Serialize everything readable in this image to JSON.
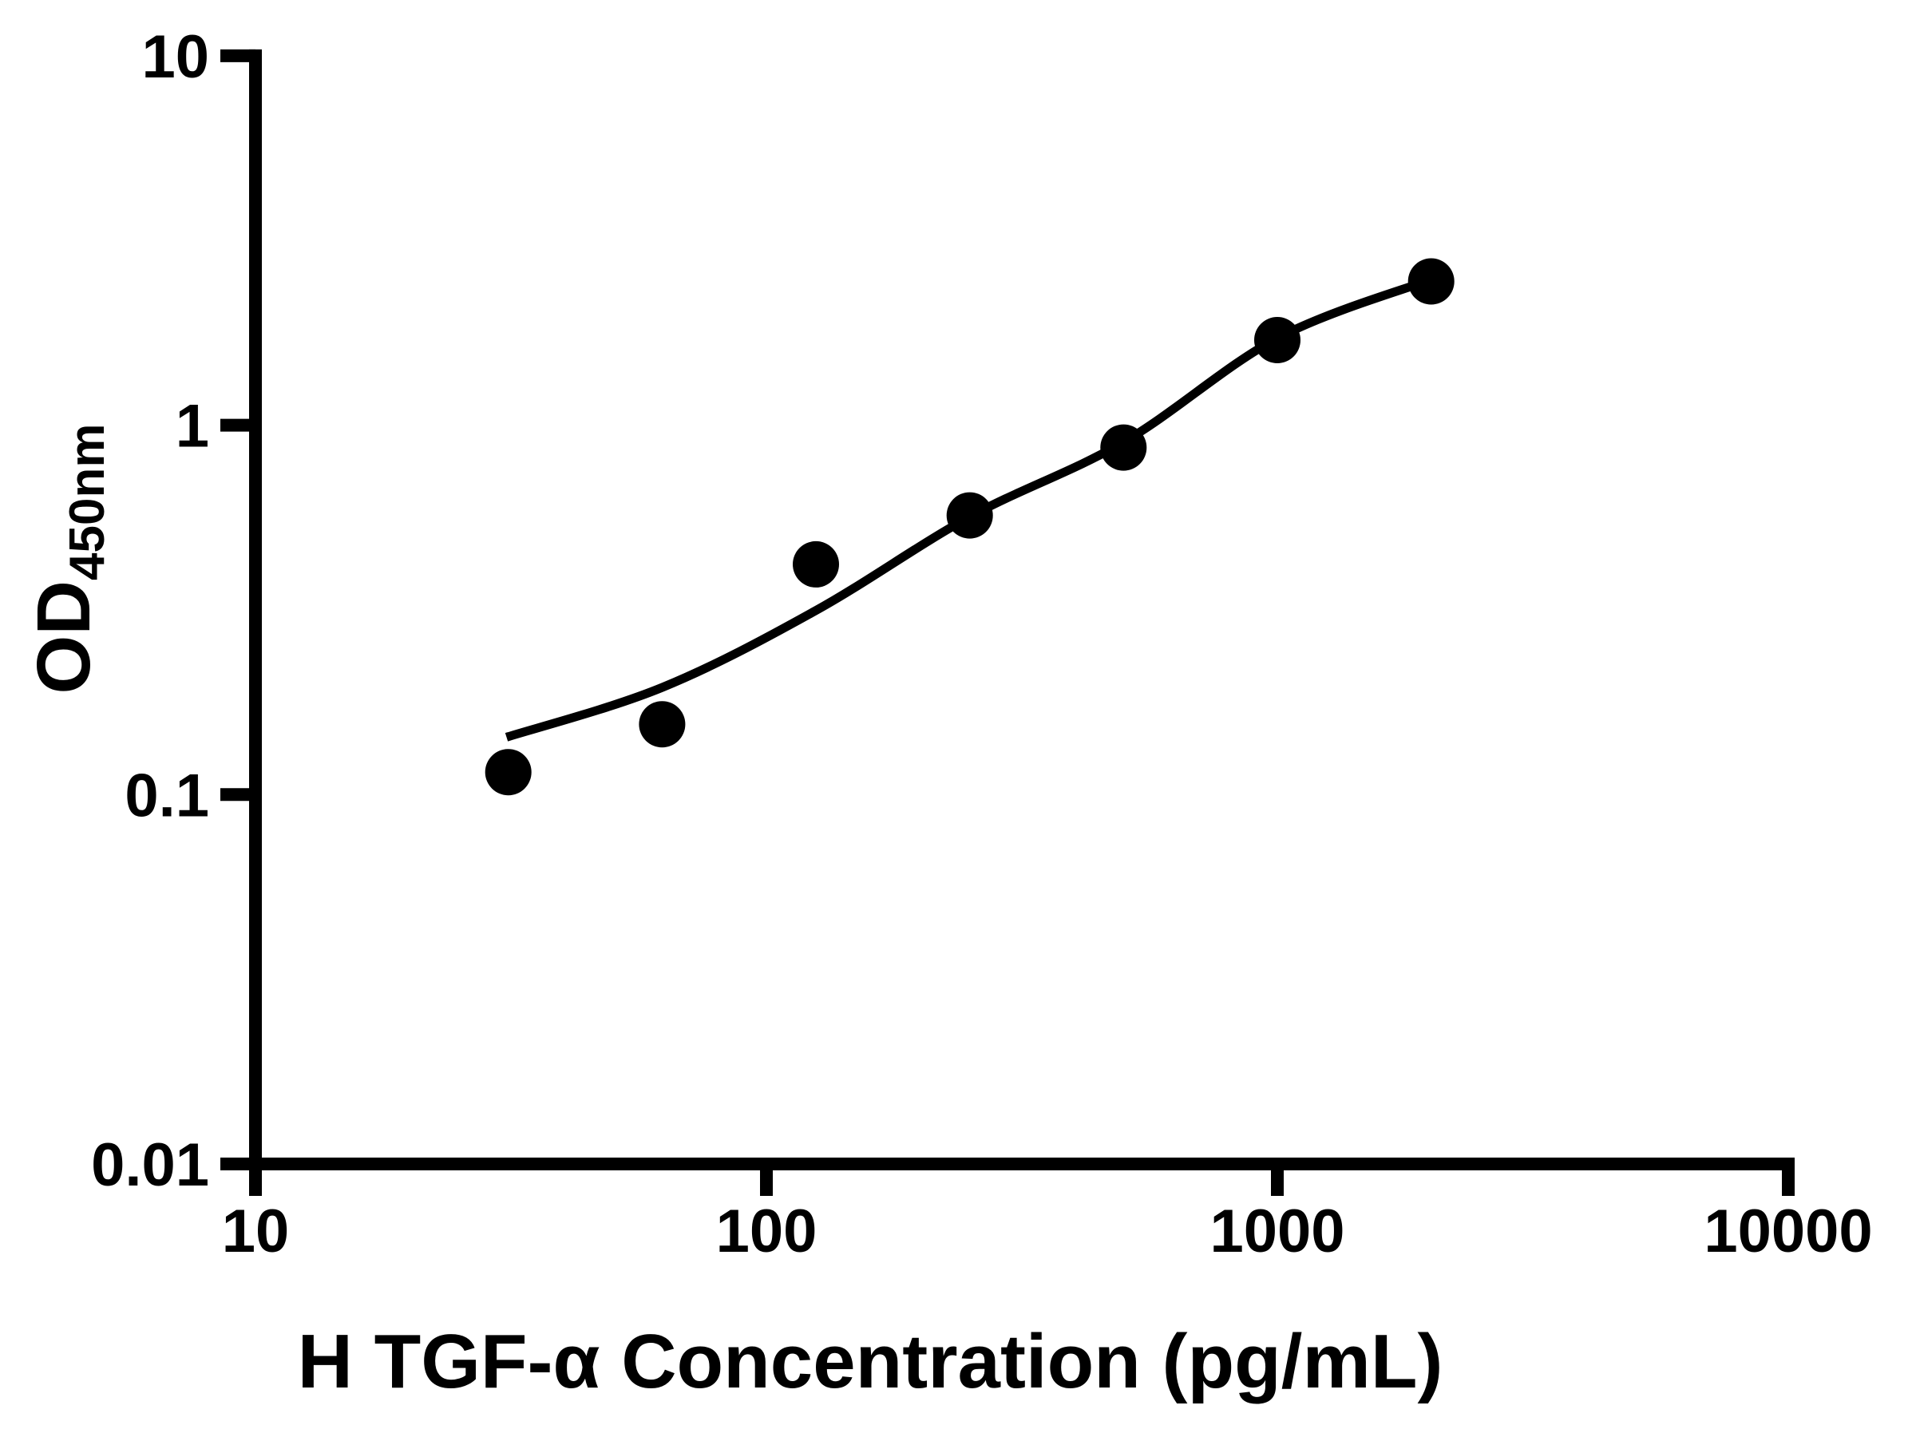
{
  "figure": {
    "background_color": "#ffffff",
    "ink_color": "#000000"
  },
  "chart_data": {
    "type": "scatter",
    "title": "",
    "xlabel": "H TGF-α Concentration (pg/mL)",
    "ylabel_main": "OD",
    "ylabel_sub": "450nm",
    "x_scale": "log",
    "y_scale": "log",
    "xlim": [
      10,
      10000
    ],
    "ylim": [
      0.01,
      10
    ],
    "x_ticks": [
      10,
      100,
      1000,
      10000
    ],
    "x_tick_labels": [
      "10",
      "100",
      "1000",
      "10000"
    ],
    "y_ticks": [
      10,
      1,
      0.1,
      0.01
    ],
    "y_tick_labels": [
      "10",
      "1",
      "0.1",
      "0.01"
    ],
    "grid": false,
    "legend_position": "none",
    "series": [
      {
        "name": "standard-points",
        "kind": "scatter",
        "marker": "filled-circle",
        "color": "#000000",
        "points": [
          [
            31.25,
            0.115
          ],
          [
            62.5,
            0.155
          ],
          [
            125,
            0.42
          ],
          [
            250,
            0.57
          ],
          [
            500,
            0.87
          ],
          [
            1000,
            1.7
          ],
          [
            2000,
            2.45
          ]
        ]
      },
      {
        "name": "fit-curve",
        "kind": "line",
        "color": "#000000",
        "points": [
          [
            31,
            0.143
          ],
          [
            62.5,
            0.195
          ],
          [
            125,
            0.315
          ],
          [
            250,
            0.565
          ],
          [
            500,
            0.9
          ],
          [
            1000,
            1.72
          ],
          [
            2000,
            2.48
          ]
        ]
      }
    ]
  }
}
